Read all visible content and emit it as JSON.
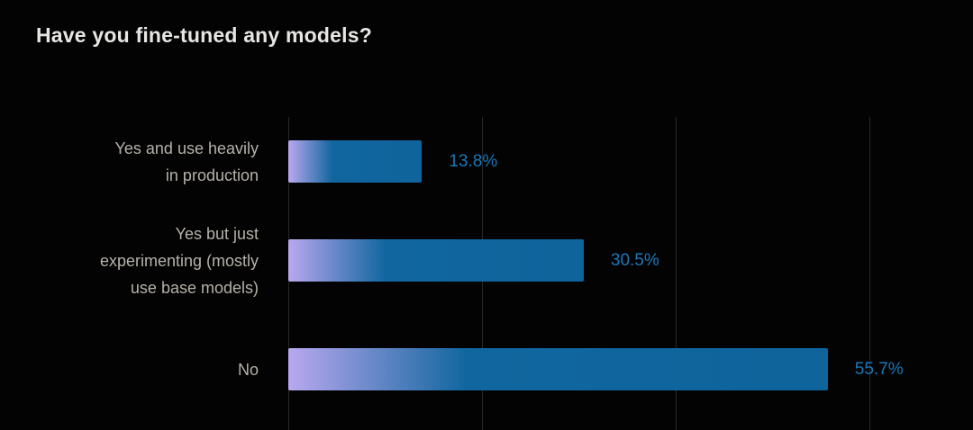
{
  "title": "Have you fine-tuned any models?",
  "colors": {
    "background": "#030303",
    "title_text": "#e8e6e2",
    "category_label": "#b6b1a8",
    "value_label": "#1a78b8",
    "bar_blue": "#11669f",
    "bar_blue_end": "#0f649c",
    "bar_gradient_purple": "#b9a8ef",
    "gridline": "#282828"
  },
  "chart_data": {
    "type": "bar",
    "orientation": "horizontal",
    "title": "Have you fine-tuned any models?",
    "categories": [
      "Yes and use heavily\nin production",
      "Yes but just\nexperimenting (mostly\nuse base models)",
      "No"
    ],
    "values": [
      13.8,
      30.5,
      55.7
    ],
    "value_labels": [
      "13.8%",
      "30.5%",
      "55.7%"
    ],
    "unit": "%",
    "xlim": [
      0,
      60
    ],
    "grid_values": [
      0,
      20,
      40,
      60
    ],
    "gridlines": true,
    "legend": false
  }
}
